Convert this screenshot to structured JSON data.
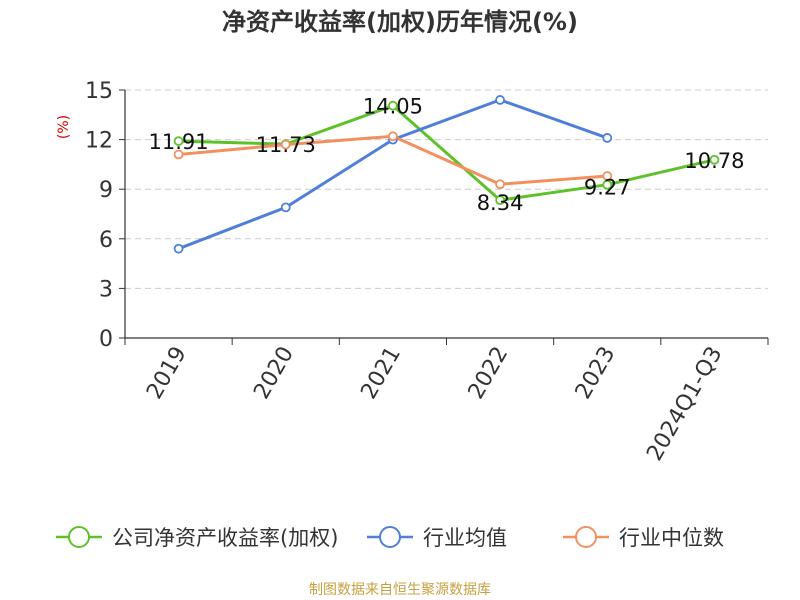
{
  "chart_data": {
    "type": "line",
    "title": "净资产收益率(加权)历年情况(%)",
    "ylabel": "(%)",
    "xlabel": "",
    "ylim": [
      0,
      15
    ],
    "yticks": [
      0,
      3,
      6,
      9,
      12,
      15
    ],
    "grid": true,
    "legend_position": "bottom",
    "categories": [
      "2019",
      "2020",
      "2021",
      "2022",
      "2023",
      "2024Q1-Q3"
    ],
    "series": [
      {
        "name": "公司净资产收益率(加权)",
        "color": "#5dc22a",
        "values": [
          11.91,
          11.73,
          14.05,
          8.34,
          9.27,
          10.78
        ],
        "labels": [
          "11.91",
          "11.73",
          "14.05",
          "8.34",
          "9.27",
          "10.78"
        ]
      },
      {
        "name": "行业均值",
        "color": "#4f7fd9",
        "values": [
          5.4,
          7.9,
          12.0,
          14.4,
          12.1,
          null
        ]
      },
      {
        "name": "行业中位数",
        "color": "#f29060",
        "values": [
          11.1,
          11.7,
          12.2,
          9.3,
          9.8,
          null
        ]
      }
    ]
  },
  "source_text": "制图数据来自恒生聚源数据库"
}
